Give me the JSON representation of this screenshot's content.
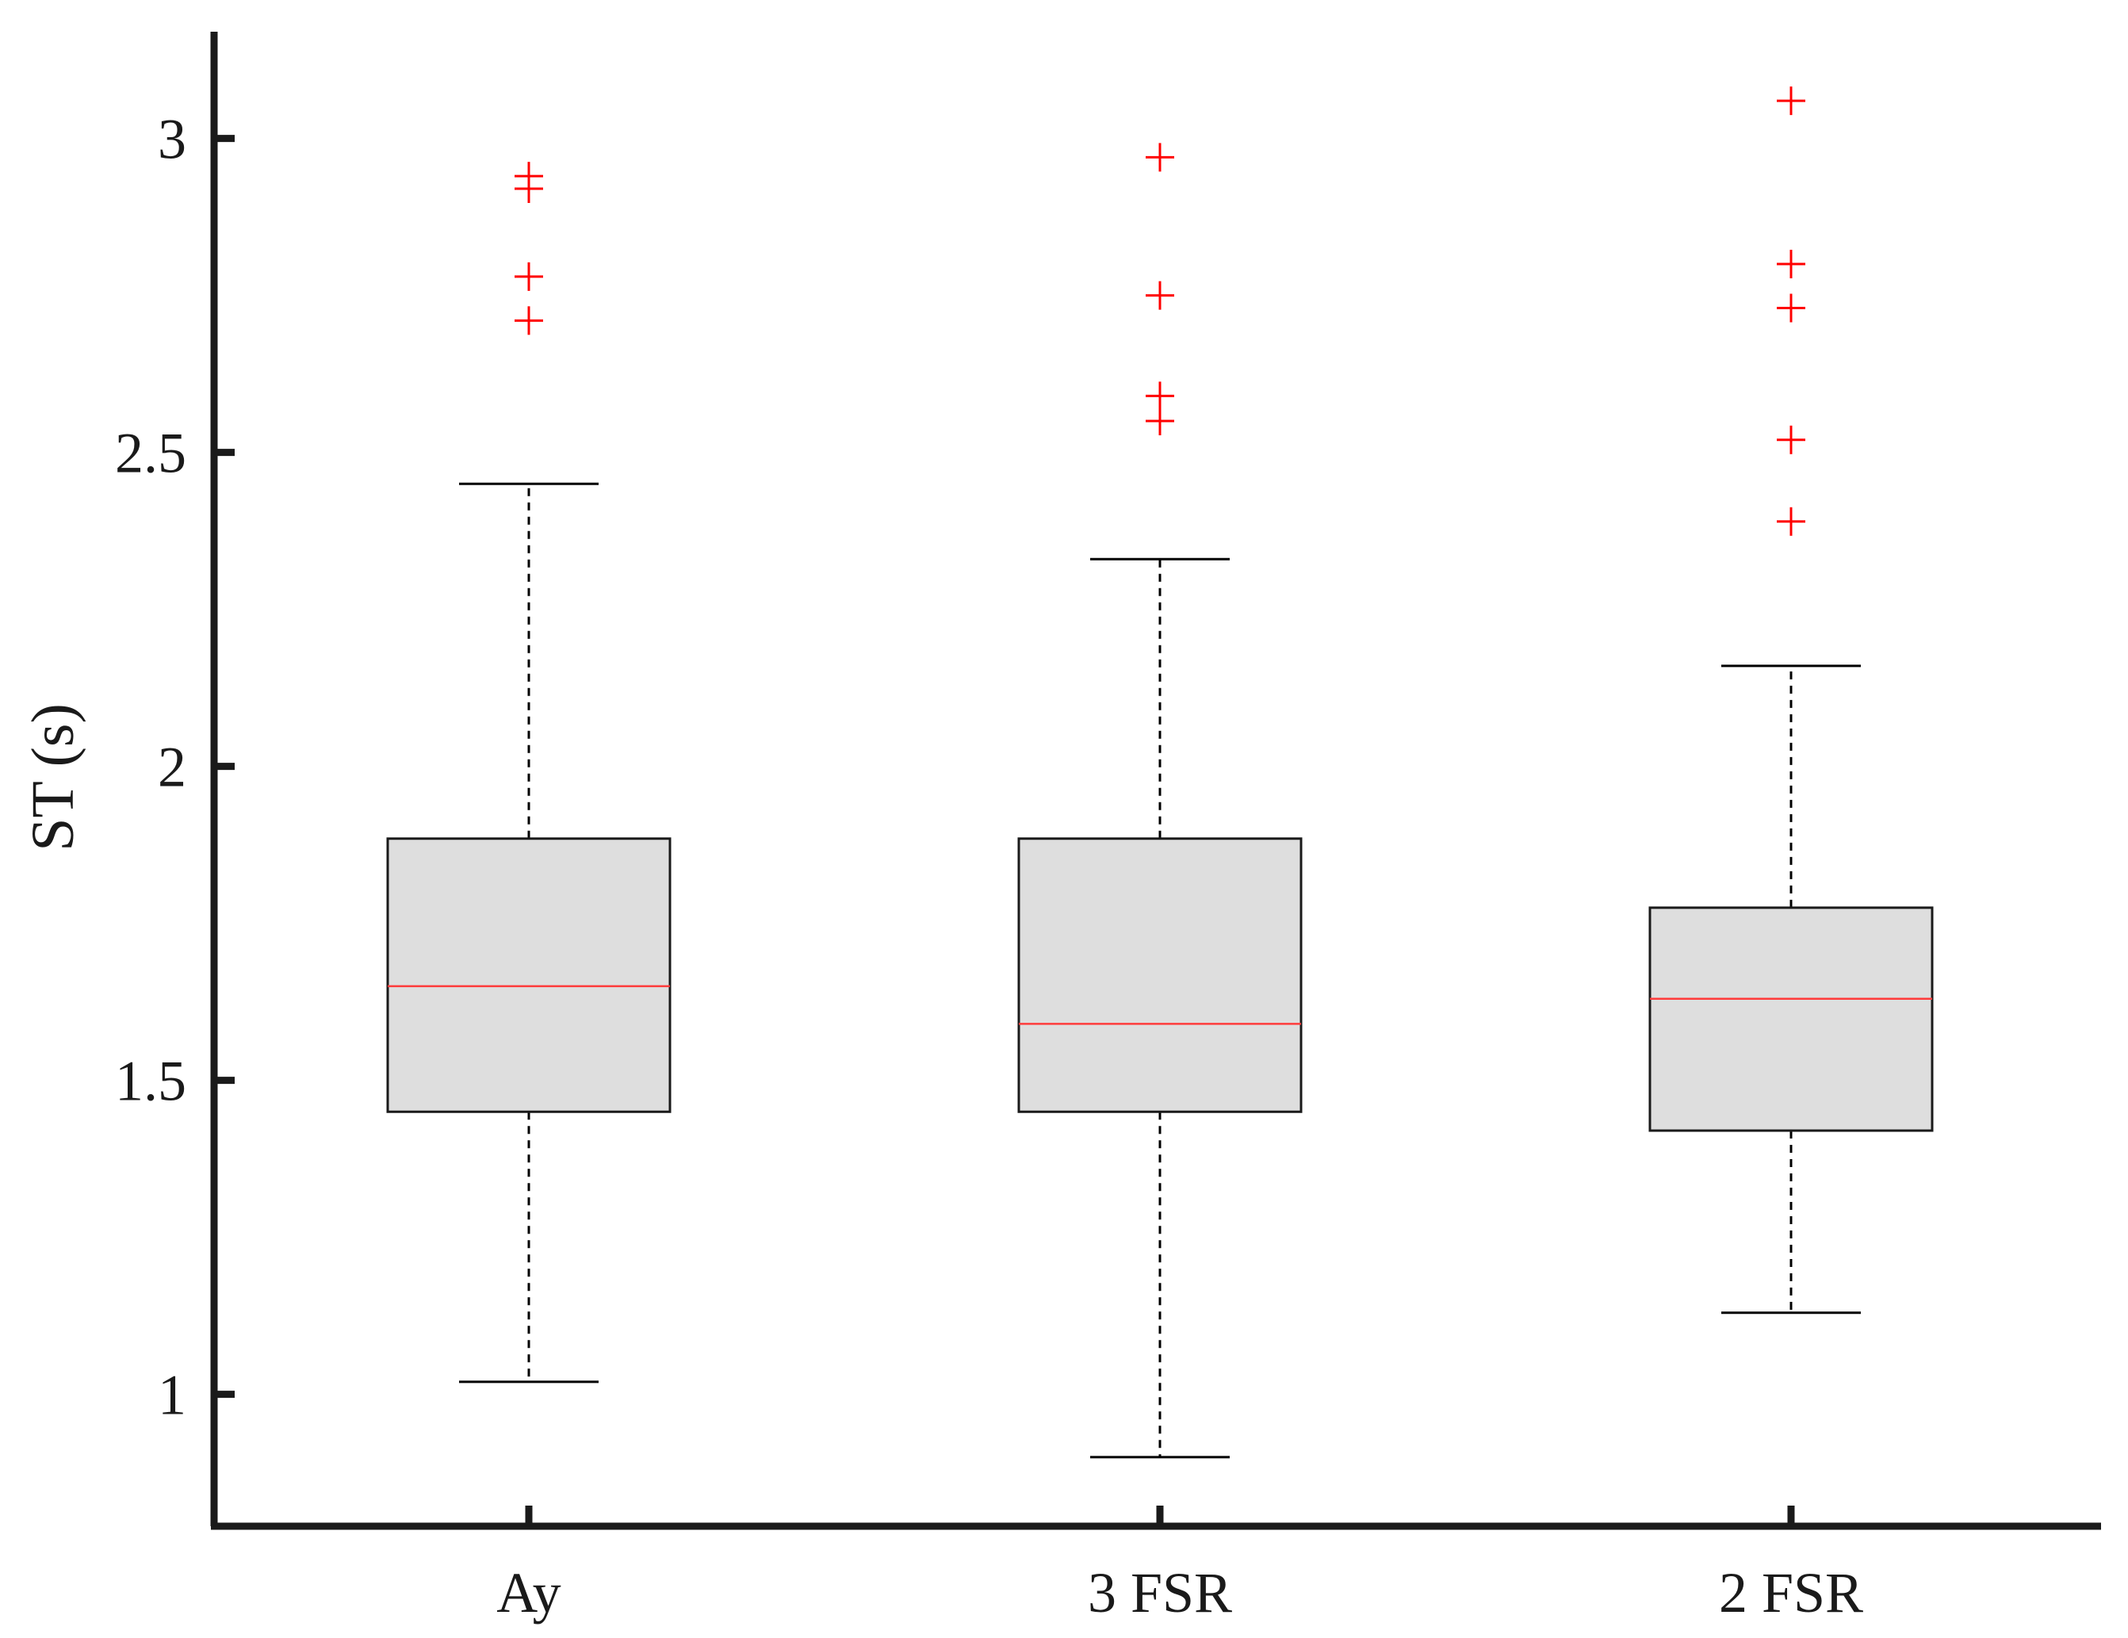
{
  "chart_data": {
    "type": "boxplot",
    "ylabel": "ST (s)",
    "xlabel": "",
    "ylim": [
      0.79,
      3.17
    ],
    "yticks": [
      1,
      1.5,
      2,
      2.5,
      3
    ],
    "ytick_labels": [
      "1",
      "1.5",
      "2",
      "2.5",
      "3"
    ],
    "categories": [
      "Ay",
      "3 FSR",
      "2 FSR"
    ],
    "grid": false,
    "colors": {
      "box_fill": "#dedede",
      "box_edge": "#1a1a1a",
      "median": "#ff3b3b",
      "outlier": "#ff0000",
      "axis": "#1a1a1a"
    },
    "boxes": [
      {
        "category": "Ay",
        "whisker_low": 1.02,
        "q1": 1.45,
        "median": 1.65,
        "q3": 1.885,
        "whisker_high": 2.45,
        "outliers": [
          2.71,
          2.78,
          2.92,
          2.94
        ]
      },
      {
        "category": "3 FSR",
        "whisker_low": 0.9,
        "q1": 1.45,
        "median": 1.59,
        "q3": 1.885,
        "whisker_high": 2.33,
        "outliers": [
          2.55,
          2.59,
          2.75,
          2.97
        ]
      },
      {
        "category": "2 FSR",
        "whisker_low": 1.13,
        "q1": 1.42,
        "median": 1.63,
        "q3": 1.775,
        "whisker_high": 2.16,
        "outliers": [
          2.39,
          2.52,
          2.73,
          2.8,
          3.06
        ]
      }
    ]
  }
}
